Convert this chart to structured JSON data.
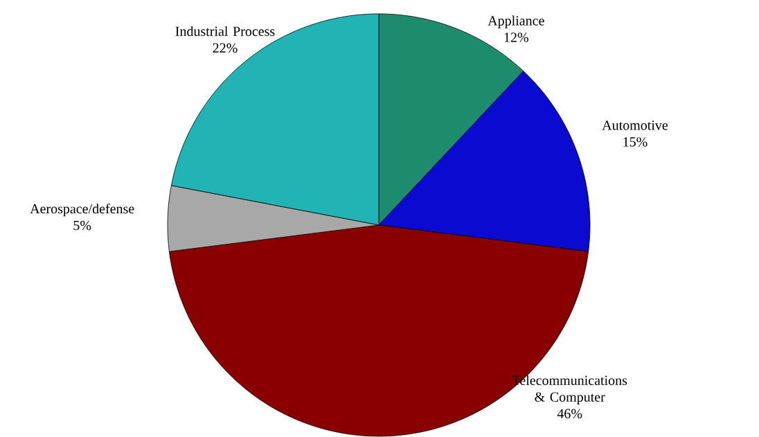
{
  "chart_data": {
    "type": "pie",
    "categories": [
      "Appliance",
      "Automotive",
      "Telecommunications & Computer",
      "Aerospace/defense",
      "Industrial Process"
    ],
    "values": [
      12,
      15,
      46,
      5,
      22
    ],
    "value_labels": [
      "12%",
      "15%",
      "46%",
      "5%",
      "22%"
    ],
    "colors": [
      "#1c8c6c",
      "#0a0ad0",
      "#8a0000",
      "#a8a8a8",
      "#22b4b4"
    ]
  }
}
